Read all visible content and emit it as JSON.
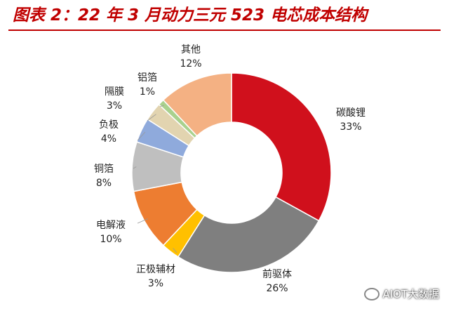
{
  "title": "图表 2：22 年 3 月动力三元 523 电芯成本结构",
  "watermark": "AIOT大数据",
  "chart_data": {
    "type": "pie",
    "donut": true,
    "title": "图表 2：22 年 3 月动力三元 523 电芯成本结构",
    "slices": [
      {
        "label": "碳酸锂",
        "value": 33,
        "display": "33%",
        "color": "#d0101c"
      },
      {
        "label": "前驱体",
        "value": 26,
        "display": "26%",
        "color": "#7f7f7f"
      },
      {
        "label": "正极辅材",
        "value": 3,
        "display": "3%",
        "color": "#ffc000"
      },
      {
        "label": "电解液",
        "value": 10,
        "display": "10%",
        "color": "#ed7d31"
      },
      {
        "label": "铜箔",
        "value": 8,
        "display": "8%",
        "color": "#bfbfbf"
      },
      {
        "label": "负极",
        "value": 4,
        "display": "4%",
        "color": "#8faadc"
      },
      {
        "label": "隔膜",
        "value": 3,
        "display": "3%",
        "color": "#e2d4b0"
      },
      {
        "label": "铝箔",
        "value": 1,
        "display": "1%",
        "color": "#a9d18e"
      },
      {
        "label": "其他",
        "value": 12,
        "display": "12%",
        "color": "#f4b183"
      }
    ]
  }
}
